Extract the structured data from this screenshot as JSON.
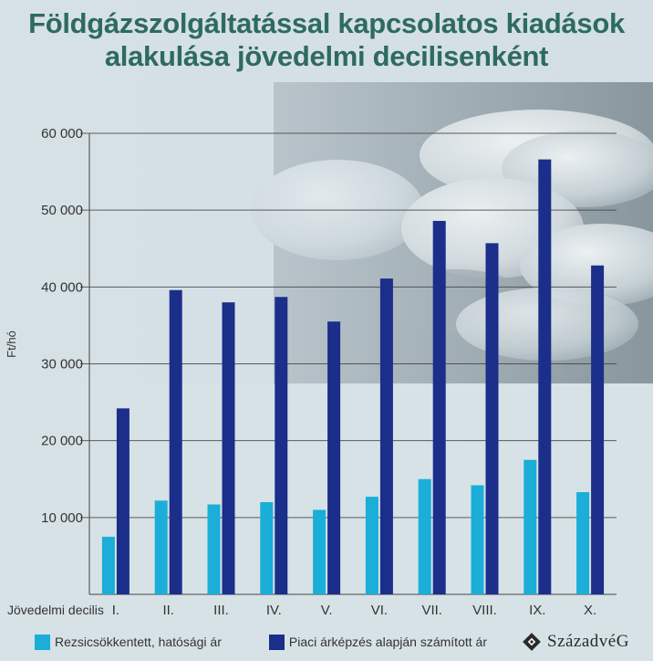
{
  "title_line1": "Földgázszolgáltatással kapcsolatos kiadások",
  "title_line2": "alakulása jövedelmi decilisenként",
  "brand": "SzázadvéG",
  "colors": {
    "series1": "#1aaed8",
    "series2": "#1b2e8a",
    "title": "#2e6b5f",
    "axis_text": "#333333"
  },
  "chart_data": {
    "type": "bar",
    "xlabel": "Jövedelmi decilis",
    "ylabel": "Ft/hó",
    "ylim": [
      0,
      60000
    ],
    "yticks": [
      10000,
      20000,
      30000,
      40000,
      50000,
      60000
    ],
    "ytick_labels": [
      "10 000",
      "20 000",
      "30 000",
      "40 000",
      "50 000",
      "60 000"
    ],
    "grid": "horizontal",
    "legend_position": "bottom",
    "categories": [
      "I.",
      "II.",
      "III.",
      "IV.",
      "V.",
      "VI.",
      "VII.",
      "VIII.",
      "IX.",
      "X."
    ],
    "series": [
      {
        "name": "Rezsicsökkentett, hatósági ár",
        "values": [
          7500,
          12200,
          11700,
          12000,
          11000,
          12700,
          15000,
          14200,
          17500,
          13300
        ]
      },
      {
        "name": "Piaci árképzés alapján számított ár",
        "values": [
          24200,
          39600,
          38000,
          38700,
          35500,
          41100,
          48600,
          45700,
          56600,
          42800
        ]
      }
    ]
  }
}
